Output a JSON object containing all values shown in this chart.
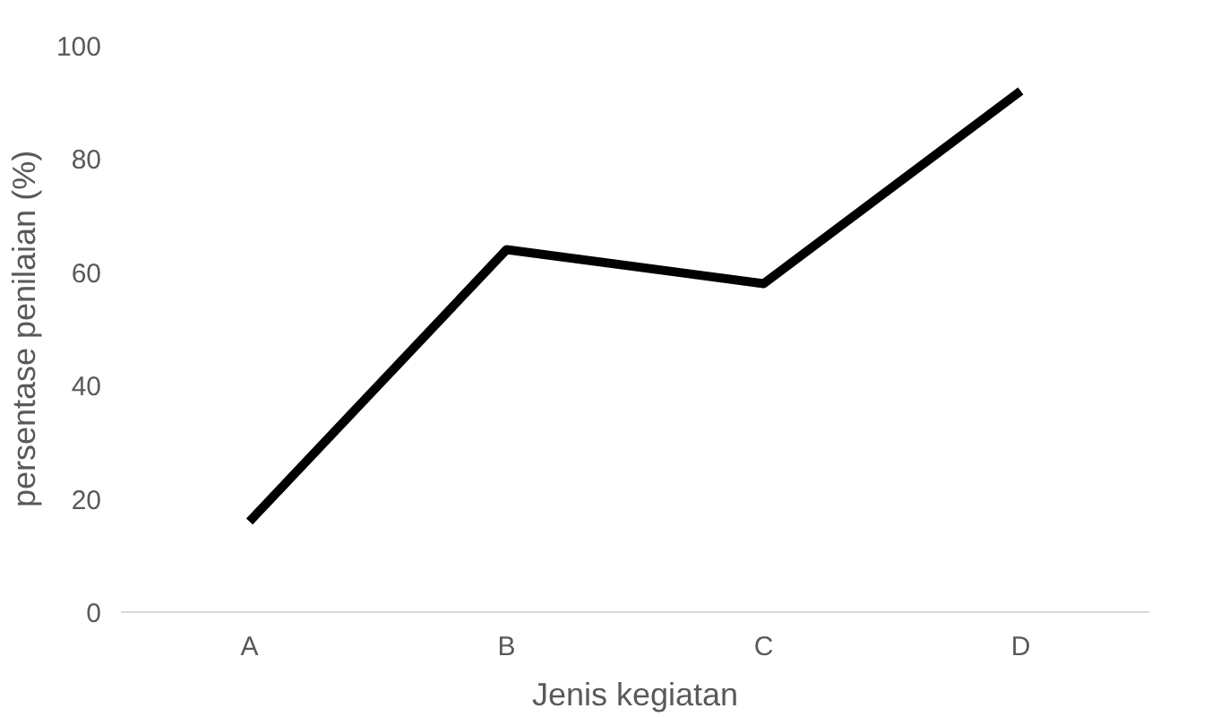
{
  "chart_data": {
    "type": "line",
    "xlabel": "Jenis kegiatan",
    "ylabel": "persentase penilaian (%)",
    "categories": [
      "A",
      "B",
      "C",
      "D"
    ],
    "series": [
      {
        "color": "#000000",
        "values": [
          16,
          64,
          58,
          92
        ]
      }
    ],
    "ylim": [
      0,
      100
    ],
    "yticks": [
      0,
      20,
      40,
      60,
      80,
      100
    ],
    "grid": false,
    "marker": "none",
    "line_style": "solid"
  }
}
